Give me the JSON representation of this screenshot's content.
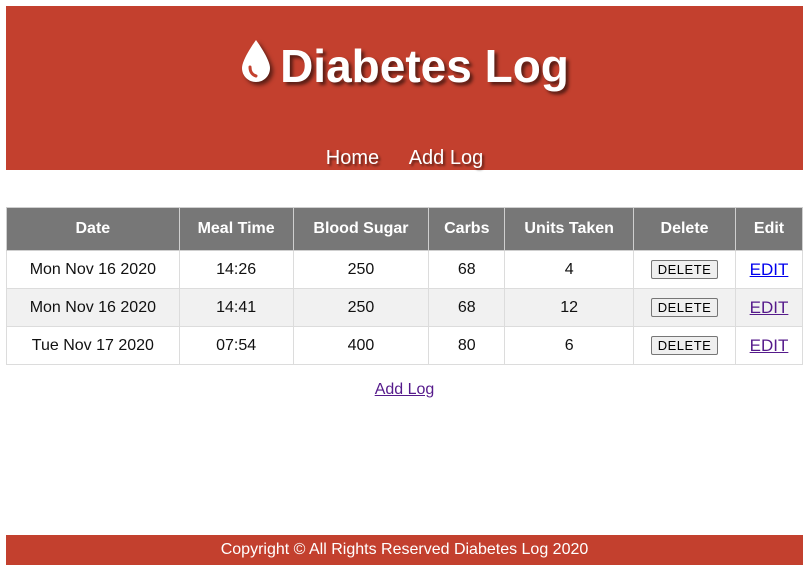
{
  "header": {
    "title": "Diabetes Log",
    "logo_icon": "blood-drop-icon",
    "nav": [
      {
        "label": "Home"
      },
      {
        "label": "Add Log"
      }
    ]
  },
  "table": {
    "columns": [
      "Date",
      "Meal Time",
      "Blood Sugar",
      "Carbs",
      "Units Taken",
      "Delete",
      "Edit"
    ],
    "rows": [
      {
        "date": "Mon Nov 16 2020",
        "meal_time": "14:26",
        "blood_sugar": "250",
        "carbs": "68",
        "units_taken": "4",
        "delete_label": "DELETE",
        "edit_label": "EDIT"
      },
      {
        "date": "Mon Nov 16 2020",
        "meal_time": "14:41",
        "blood_sugar": "250",
        "carbs": "68",
        "units_taken": "12",
        "delete_label": "DELETE",
        "edit_label": "EDIT"
      },
      {
        "date": "Tue Nov 17 2020",
        "meal_time": "07:54",
        "blood_sugar": "400",
        "carbs": "80",
        "units_taken": "6",
        "delete_label": "DELETE",
        "edit_label": "EDIT"
      }
    ]
  },
  "add_log_link": "Add Log",
  "footer": {
    "text": "Copyright © All Rights Reserved Diabetes Log 2020"
  },
  "colors": {
    "brand": "#c3402e",
    "table_header": "#777777",
    "alt_row": "#f1f1f1",
    "link_visited": "#551a8b",
    "link": "#0000ee"
  }
}
